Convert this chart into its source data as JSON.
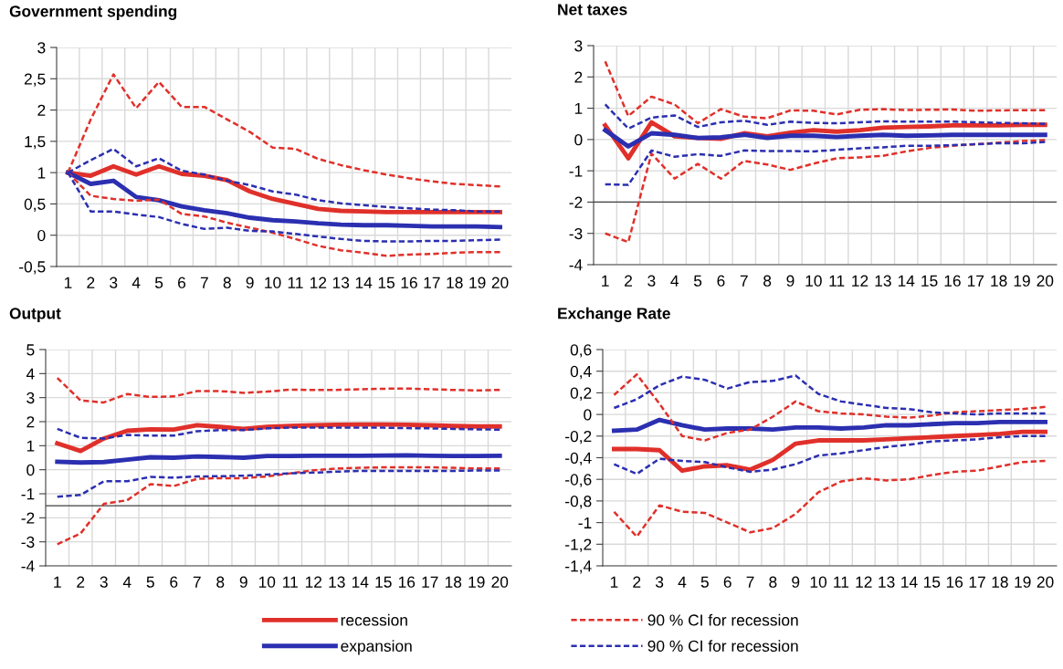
{
  "chart_data": [
    {
      "type": "line",
      "title": "Government spending",
      "categories": [
        "1",
        "2",
        "3",
        "4",
        "5",
        "6",
        "7",
        "8",
        "9",
        "10",
        "11",
        "12",
        "13",
        "14",
        "15",
        "16",
        "17",
        "18",
        "19",
        "20"
      ],
      "ylim": [
        -0.5,
        3
      ],
      "yticks": [
        {
          "value": -0.5,
          "label": "-0,5"
        },
        0,
        {
          "value": 0.5,
          "label": "0,5"
        },
        1,
        {
          "value": 1.5,
          "label": "1,5"
        },
        2,
        {
          "value": 2.5,
          "label": "2,5"
        },
        3
      ],
      "grid": true,
      "legend": "bottom",
      "series": [
        {
          "name": "recession",
          "color": "#e0302a",
          "line_style": "solid",
          "values": [
            1,
            0.95,
            1.1,
            0.97,
            1.1,
            0.98,
            0.95,
            0.88,
            0.7,
            0.58,
            0.5,
            0.42,
            0.39,
            0.38,
            0.37,
            0.37,
            0.37,
            0.37,
            0.37,
            0.37
          ]
        },
        {
          "name": "expansion",
          "color": "#2b2fb0",
          "line_style": "solid",
          "values": [
            1,
            0.82,
            0.87,
            0.61,
            0.56,
            0.46,
            0.4,
            0.35,
            0.28,
            0.24,
            0.22,
            0.19,
            0.17,
            0.16,
            0.16,
            0.15,
            0.14,
            0.14,
            0.14,
            0.13
          ]
        },
        {
          "name": "90 % CI for recession",
          "color": "#e0302a",
          "line_style": "dashed",
          "values": [
            1,
            1.85,
            2.57,
            2.03,
            2.45,
            2.05,
            2.05,
            1.85,
            1.65,
            1.4,
            1.38,
            1.22,
            1.12,
            1.04,
            0.97,
            0.91,
            0.86,
            0.82,
            0.8,
            0.78
          ]
        },
        {
          "color": "#e0302a",
          "line_style": "dashed",
          "values": [
            1,
            0.63,
            0.58,
            0.55,
            0.57,
            0.34,
            0.3,
            0.2,
            0.12,
            0.04,
            -0.06,
            -0.17,
            -0.24,
            -0.28,
            -0.33,
            -0.31,
            -0.3,
            -0.28,
            -0.27,
            -0.27
          ]
        },
        {
          "name": "90 % CI for recession",
          "color": "#2b2fb0",
          "line_style": "dashed",
          "values": [
            1,
            1.2,
            1.38,
            1.1,
            1.23,
            1.03,
            0.97,
            0.87,
            0.8,
            0.7,
            0.65,
            0.56,
            0.51,
            0.48,
            0.45,
            0.43,
            0.41,
            0.4,
            0.38,
            0.38
          ]
        },
        {
          "color": "#2b2fb0",
          "line_style": "dashed",
          "values": [
            1,
            0.38,
            0.38,
            0.33,
            0.29,
            0.18,
            0.1,
            0.12,
            0.07,
            0.06,
            0.02,
            -0.02,
            -0.06,
            -0.09,
            -0.1,
            -0.1,
            -0.09,
            -0.09,
            -0.08,
            -0.07
          ]
        }
      ]
    },
    {
      "type": "line",
      "title": "Net taxes",
      "categories": [
        "1",
        "2",
        "3",
        "4",
        "5",
        "6",
        "7",
        "8",
        "9",
        "10",
        "11",
        "12",
        "13",
        "14",
        "15",
        "16",
        "17",
        "18",
        "19",
        "20"
      ],
      "ylim": [
        -4,
        3
      ],
      "yticks": [
        -4,
        -3,
        -2,
        -1,
        0,
        1,
        2,
        3
      ],
      "grid": true,
      "ref_lines": [
        {
          "axis": "y",
          "value": -2,
          "color": "#404040"
        }
      ],
      "series": [
        {
          "color": "#e0302a",
          "line_style": "solid",
          "values": [
            0.45,
            -0.6,
            0.55,
            0.1,
            0.05,
            0.02,
            0.2,
            0.1,
            0.22,
            0.3,
            0.25,
            0.3,
            0.38,
            0.4,
            0.42,
            0.45,
            0.45,
            0.45,
            0.47,
            0.47
          ]
        },
        {
          "color": "#2b2fb0",
          "line_style": "solid",
          "values": [
            0.3,
            -0.22,
            0.2,
            0.15,
            0.05,
            0.07,
            0.15,
            0.05,
            0.12,
            0.12,
            0.08,
            0.12,
            0.15,
            0.12,
            0.13,
            0.15,
            0.15,
            0.15,
            0.15,
            0.15
          ]
        },
        {
          "color": "#e0302a",
          "line_style": "dashed",
          "values": [
            2.5,
            0.75,
            1.37,
            1.12,
            0.52,
            0.97,
            0.73,
            0.68,
            0.93,
            0.92,
            0.8,
            0.95,
            0.97,
            0.94,
            0.95,
            0.96,
            0.92,
            0.93,
            0.94,
            0.94
          ]
        },
        {
          "color": "#e0302a",
          "line_style": "dashed",
          "values": [
            -3,
            -3.28,
            -0.45,
            -1.25,
            -0.78,
            -1.25,
            -0.68,
            -0.8,
            -0.97,
            -0.77,
            -0.6,
            -0.57,
            -0.52,
            -0.38,
            -0.27,
            -0.2,
            -0.15,
            -0.1,
            -0.05,
            -0.02
          ]
        },
        {
          "color": "#2b2fb0",
          "line_style": "dashed",
          "values": [
            1.12,
            0.35,
            0.7,
            0.77,
            0.4,
            0.55,
            0.6,
            0.47,
            0.57,
            0.53,
            0.52,
            0.55,
            0.58,
            0.57,
            0.57,
            0.57,
            0.55,
            0.53,
            0.52,
            0.5
          ]
        },
        {
          "color": "#2b2fb0",
          "line_style": "dashed",
          "values": [
            -1.43,
            -1.45,
            -0.35,
            -0.55,
            -0.47,
            -0.52,
            -0.35,
            -0.37,
            -0.37,
            -0.38,
            -0.33,
            -0.28,
            -0.25,
            -0.2,
            -0.2,
            -0.18,
            -0.15,
            -0.12,
            -0.12,
            -0.08
          ]
        }
      ]
    },
    {
      "type": "line",
      "title": "Output",
      "categories": [
        "1",
        "2",
        "3",
        "4",
        "5",
        "6",
        "7",
        "8",
        "9",
        "10",
        "11",
        "12",
        "13",
        "14",
        "15",
        "16",
        "17",
        "18",
        "19",
        "20"
      ],
      "ylim": [
        -4,
        5
      ],
      "yticks": [
        -4,
        -3,
        -2,
        -1,
        0,
        1,
        2,
        3,
        4,
        5
      ],
      "grid": true,
      "ref_lines": [
        {
          "axis": "y",
          "value": -1.5,
          "color": "#404040"
        }
      ],
      "series": [
        {
          "color": "#e0302a",
          "line_style": "solid",
          "values": [
            1.1,
            0.78,
            1.3,
            1.62,
            1.68,
            1.67,
            1.85,
            1.78,
            1.7,
            1.78,
            1.82,
            1.85,
            1.87,
            1.88,
            1.88,
            1.87,
            1.85,
            1.82,
            1.8,
            1.8
          ]
        },
        {
          "color": "#2b2fb0",
          "line_style": "solid",
          "values": [
            0.33,
            0.3,
            0.32,
            0.42,
            0.52,
            0.5,
            0.55,
            0.53,
            0.5,
            0.57,
            0.57,
            0.58,
            0.58,
            0.58,
            0.59,
            0.6,
            0.58,
            0.57,
            0.57,
            0.58
          ]
        },
        {
          "color": "#e0302a",
          "line_style": "dashed",
          "values": [
            3.82,
            2.88,
            2.8,
            3.15,
            3.03,
            3.05,
            3.27,
            3.27,
            3.2,
            3.25,
            3.33,
            3.32,
            3.32,
            3.35,
            3.37,
            3.38,
            3.35,
            3.32,
            3.3,
            3.32
          ]
        },
        {
          "color": "#e0302a",
          "line_style": "dashed",
          "values": [
            -3.1,
            -2.65,
            -1.42,
            -1.27,
            -0.6,
            -0.68,
            -0.38,
            -0.35,
            -0.35,
            -0.28,
            -0.15,
            -0.02,
            0.05,
            0.08,
            0.1,
            0.1,
            0.1,
            0.08,
            0.05,
            0.05
          ]
        },
        {
          "color": "#2b2fb0",
          "line_style": "dashed",
          "values": [
            1.7,
            1.33,
            1.3,
            1.45,
            1.42,
            1.42,
            1.6,
            1.65,
            1.65,
            1.72,
            1.75,
            1.75,
            1.75,
            1.75,
            1.75,
            1.73,
            1.72,
            1.7,
            1.68,
            1.67
          ]
        },
        {
          "color": "#2b2fb0",
          "line_style": "dashed",
          "values": [
            -1.12,
            -1.05,
            -0.48,
            -0.48,
            -0.3,
            -0.33,
            -0.28,
            -0.27,
            -0.25,
            -0.2,
            -0.15,
            -0.12,
            -0.08,
            -0.05,
            -0.05,
            -0.05,
            -0.05,
            -0.05,
            -0.03,
            -0.03
          ]
        }
      ]
    },
    {
      "type": "line",
      "title": "Exchange Rate",
      "categories": [
        "1",
        "2",
        "3",
        "4",
        "5",
        "6",
        "7",
        "8",
        "9",
        "10",
        "11",
        "12",
        "13",
        "14",
        "15",
        "16",
        "17",
        "18",
        "19",
        "20"
      ],
      "ylim": [
        -1.4,
        0.6
      ],
      "yticks": [
        {
          "value": -1.4,
          "label": "-1,4"
        },
        {
          "value": -1.2,
          "label": "-1,2"
        },
        -1,
        {
          "value": -0.8,
          "label": "-0,8"
        },
        {
          "value": -0.6,
          "label": "-0,6"
        },
        {
          "value": -0.4,
          "label": "-0,4"
        },
        {
          "value": -0.2,
          "label": "-0,2"
        },
        0,
        {
          "value": 0.2,
          "label": "0,2"
        },
        {
          "value": 0.4,
          "label": "0,4"
        },
        {
          "value": 0.6,
          "label": "0,6"
        }
      ],
      "grid": true,
      "series": [
        {
          "color": "#e0302a",
          "line_style": "solid",
          "values": [
            -0.32,
            -0.32,
            -0.33,
            -0.52,
            -0.48,
            -0.47,
            -0.51,
            -0.42,
            -0.27,
            -0.24,
            -0.24,
            -0.24,
            -0.23,
            -0.22,
            -0.21,
            -0.2,
            -0.19,
            -0.18,
            -0.16,
            -0.16
          ]
        },
        {
          "color": "#2b2fb0",
          "line_style": "solid",
          "values": [
            -0.15,
            -0.14,
            -0.05,
            -0.1,
            -0.14,
            -0.13,
            -0.13,
            -0.14,
            -0.12,
            -0.12,
            -0.13,
            -0.12,
            -0.1,
            -0.1,
            -0.09,
            -0.08,
            -0.08,
            -0.07,
            -0.07,
            -0.07
          ]
        },
        {
          "color": "#e0302a",
          "line_style": "dashed",
          "values": [
            0.18,
            0.37,
            0.1,
            -0.2,
            -0.24,
            -0.17,
            -0.14,
            -0.02,
            0.12,
            0.03,
            0.01,
            0,
            -0.02,
            -0.03,
            -0.01,
            0.02,
            0.03,
            0.04,
            0.05,
            0.07
          ]
        },
        {
          "color": "#e0302a",
          "line_style": "dashed",
          "values": [
            -0.9,
            -1.13,
            -0.84,
            -0.9,
            -0.91,
            -1,
            -1.09,
            -1.05,
            -0.92,
            -0.72,
            -0.62,
            -0.59,
            -0.61,
            -0.6,
            -0.56,
            -0.53,
            -0.52,
            -0.48,
            -0.44,
            -0.43
          ]
        },
        {
          "color": "#2b2fb0",
          "line_style": "dashed",
          "values": [
            0.06,
            0.14,
            0.27,
            0.35,
            0.32,
            0.24,
            0.3,
            0.31,
            0.36,
            0.19,
            0.12,
            0.09,
            0.06,
            0.05,
            0.02,
            0.01,
            0,
            0.01,
            0.01,
            0.01
          ]
        },
        {
          "color": "#2b2fb0",
          "line_style": "dashed",
          "values": [
            -0.46,
            -0.55,
            -0.41,
            -0.43,
            -0.44,
            -0.49,
            -0.53,
            -0.51,
            -0.46,
            -0.38,
            -0.36,
            -0.33,
            -0.3,
            -0.28,
            -0.25,
            -0.24,
            -0.23,
            -0.21,
            -0.2,
            -0.2
          ]
        }
      ]
    }
  ]
}
